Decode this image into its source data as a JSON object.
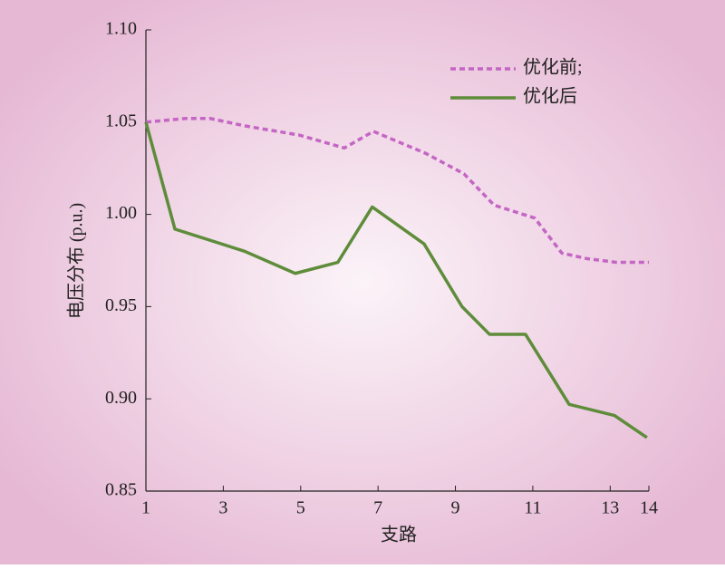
{
  "chart_data": {
    "type": "line",
    "xlabel": "支路",
    "ylabel": "电压分布 (p.u.)",
    "xlim": [
      1,
      14
    ],
    "xticks": [
      1,
      3,
      5,
      7,
      9,
      11,
      13,
      14
    ],
    "ylim": [
      0.85,
      1.1
    ],
    "yticks": [
      {
        "value": 0.85,
        "label": "0.85"
      },
      {
        "value": 0.9,
        "label": "0.90"
      },
      {
        "value": 0.95,
        "label": "0.95"
      },
      {
        "value": 1.0,
        "label": "1.00"
      },
      {
        "value": 1.05,
        "label": "1.05"
      },
      {
        "value": 1.1,
        "label": "1.10"
      }
    ],
    "legend": "upper right",
    "series": [
      {
        "name": "优化前;",
        "color": "#c466c4",
        "dash": true,
        "x": [
          1,
          2.03,
          2.66,
          3.55,
          4.96,
          6.13,
          6.88,
          8.24,
          9.22,
          10.0,
          11.05,
          11.75,
          12.4,
          13.15,
          14
        ],
        "values": [
          1.05,
          1.052,
          1.052,
          1.048,
          1.043,
          1.036,
          1.045,
          1.033,
          1.022,
          1.005,
          0.998,
          0.979,
          0.976,
          0.974,
          0.974
        ]
      },
      {
        "name": "优化后",
        "color": "#5e8c3a",
        "dash": false,
        "x": [
          1,
          1.75,
          3.55,
          4.86,
          5.96,
          6.85,
          8.19,
          9.17,
          9.88,
          10.81,
          11.94,
          13.11,
          13.95
        ],
        "values": [
          1.05,
          0.992,
          0.98,
          0.968,
          0.974,
          1.004,
          0.984,
          0.95,
          0.935,
          0.935,
          0.897,
          0.891,
          0.879
        ]
      }
    ]
  }
}
